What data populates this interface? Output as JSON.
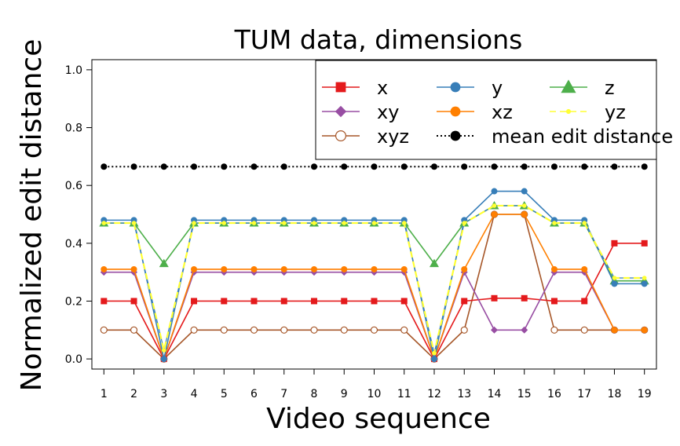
{
  "chart_data": {
    "type": "line",
    "title": "TUM data, dimensions",
    "xlabel": "Video sequence",
    "ylabel": "Normalized edit distance",
    "x": [
      1,
      2,
      3,
      4,
      5,
      6,
      7,
      8,
      9,
      10,
      11,
      12,
      13,
      14,
      15,
      16,
      17,
      18,
      19
    ],
    "xticks": [
      "1",
      "2",
      "3",
      "4",
      "5",
      "6",
      "7",
      "8",
      "9",
      "10",
      "11",
      "12",
      "13",
      "14",
      "15",
      "16",
      "17",
      "18",
      "19"
    ],
    "ylim": [
      0.0,
      1.0
    ],
    "yticks": [
      "0.0",
      "0.2",
      "0.4",
      "0.6",
      "0.8",
      "1.0"
    ],
    "grid": false,
    "legend_position": "top-right",
    "series": [
      {
        "name": "x",
        "color": "#e41a1c",
        "marker": "square",
        "dash": "solid",
        "values": [
          0.2,
          0.2,
          0.0,
          0.2,
          0.2,
          0.2,
          0.2,
          0.2,
          0.2,
          0.2,
          0.2,
          0.0,
          0.2,
          0.21,
          0.21,
          0.2,
          0.2,
          0.4,
          0.4
        ]
      },
      {
        "name": "y",
        "color": "#377eb8",
        "marker": "circle",
        "dash": "solid",
        "values": [
          0.48,
          0.48,
          0.0,
          0.48,
          0.48,
          0.48,
          0.48,
          0.48,
          0.48,
          0.48,
          0.48,
          0.0,
          0.48,
          0.58,
          0.58,
          0.48,
          0.48,
          0.26,
          0.26
        ]
      },
      {
        "name": "z",
        "color": "#4daf4a",
        "marker": "triangle",
        "dash": "solid",
        "values": [
          0.47,
          0.47,
          0.33,
          0.47,
          0.47,
          0.47,
          0.47,
          0.47,
          0.47,
          0.47,
          0.47,
          0.33,
          0.47,
          0.53,
          0.53,
          0.47,
          0.47,
          0.27,
          0.27
        ]
      },
      {
        "name": "xy",
        "color": "#984ea3",
        "marker": "diamond",
        "dash": "solid",
        "values": [
          0.3,
          0.3,
          0.0,
          0.3,
          0.3,
          0.3,
          0.3,
          0.3,
          0.3,
          0.3,
          0.3,
          0.0,
          0.3,
          0.1,
          0.1,
          0.3,
          0.3,
          0.1,
          0.1
        ]
      },
      {
        "name": "xz",
        "color": "#ff7f00",
        "marker": "circle",
        "dash": "solid",
        "values": [
          0.31,
          0.31,
          0.0,
          0.31,
          0.31,
          0.31,
          0.31,
          0.31,
          0.31,
          0.31,
          0.31,
          0.0,
          0.31,
          0.5,
          0.5,
          0.31,
          0.31,
          0.1,
          0.1
        ]
      },
      {
        "name": "yz",
        "color": "#ffff33",
        "marker": "small-circle",
        "dash": "dashed",
        "values": [
          0.47,
          0.47,
          0.03,
          0.47,
          0.47,
          0.47,
          0.47,
          0.47,
          0.47,
          0.47,
          0.47,
          0.02,
          0.47,
          0.53,
          0.53,
          0.47,
          0.47,
          0.28,
          0.28
        ]
      },
      {
        "name": "xyz",
        "color": "#a65628",
        "marker": "open-circle",
        "dash": "solid",
        "values": [
          0.1,
          0.1,
          0.0,
          0.1,
          0.1,
          0.1,
          0.1,
          0.1,
          0.1,
          0.1,
          0.1,
          0.0,
          0.1,
          0.5,
          0.5,
          0.1,
          0.1,
          0.1,
          0.1
        ]
      },
      {
        "name": "mean edit distance",
        "color": "#000000",
        "marker": "circle",
        "dash": "dotted",
        "values": [
          0.665,
          0.665,
          0.665,
          0.665,
          0.665,
          0.665,
          0.665,
          0.665,
          0.665,
          0.665,
          0.665,
          0.665,
          0.665,
          0.665,
          0.665,
          0.665,
          0.665,
          0.665,
          0.665
        ]
      }
    ],
    "legend_order": [
      "x",
      "y",
      "z",
      "xy",
      "xz",
      "yz",
      "xyz",
      "mean edit distance"
    ]
  }
}
